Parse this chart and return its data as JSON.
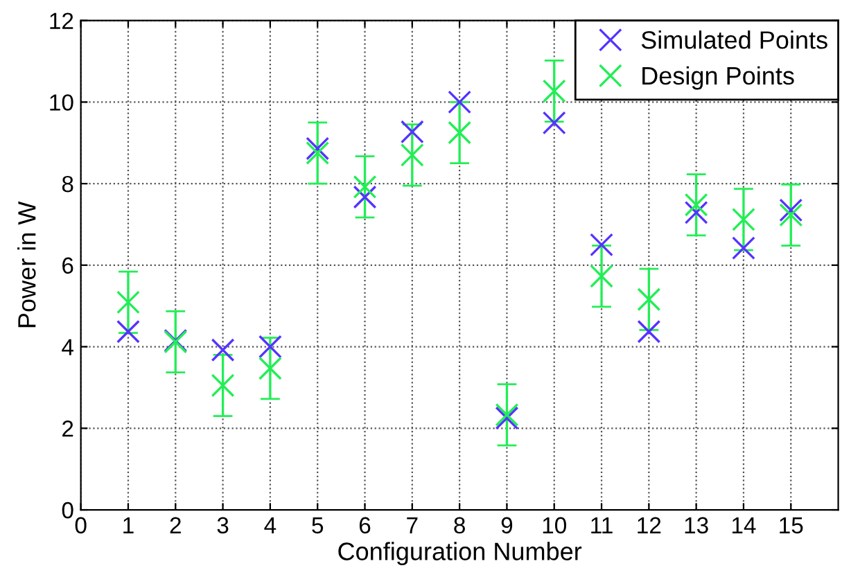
{
  "chart_data": {
    "type": "scatter",
    "xlabel": "Configuration Number",
    "ylabel": "Power in W",
    "x": [
      1,
      2,
      3,
      4,
      5,
      6,
      7,
      8,
      9,
      10,
      11,
      12,
      13,
      14,
      15
    ],
    "series": [
      {
        "name": "Simulated Points",
        "color": "#5533ff",
        "values": [
          4.37,
          4.15,
          3.92,
          4.0,
          8.86,
          7.67,
          9.27,
          10.0,
          2.25,
          9.49,
          6.5,
          4.37,
          7.29,
          6.42,
          7.35
        ]
      },
      {
        "name": "Design Points",
        "color": "#22ee55",
        "values": [
          5.09,
          4.12,
          3.05,
          3.47,
          8.75,
          7.92,
          8.7,
          9.25,
          2.33,
          10.27,
          5.73,
          5.16,
          7.48,
          7.12,
          7.23
        ],
        "errors": [
          0.75,
          0.75,
          0.75,
          0.75,
          0.75,
          0.75,
          0.75,
          0.75,
          0.75,
          0.75,
          0.75,
          0.75,
          0.75,
          0.75,
          0.75
        ]
      }
    ],
    "xlim": [
      0,
      16
    ],
    "xticks": [
      0,
      1,
      2,
      3,
      4,
      5,
      6,
      7,
      8,
      9,
      10,
      11,
      12,
      13,
      14,
      15
    ],
    "ylim": [
      0,
      12
    ],
    "yticks": [
      0,
      2,
      4,
      6,
      8,
      10,
      12
    ],
    "grid": true,
    "legend": "top right",
    "marker": "cross"
  }
}
